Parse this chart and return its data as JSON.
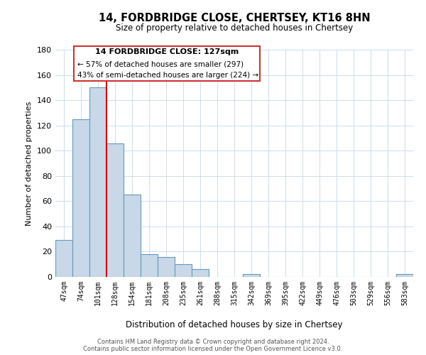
{
  "title": "14, FORDBRIDGE CLOSE, CHERTSEY, KT16 8HN",
  "subtitle": "Size of property relative to detached houses in Chertsey",
  "xlabel": "Distribution of detached houses by size in Chertsey",
  "ylabel": "Number of detached properties",
  "bar_labels": [
    "47sqm",
    "74sqm",
    "101sqm",
    "128sqm",
    "154sqm",
    "181sqm",
    "208sqm",
    "235sqm",
    "261sqm",
    "288sqm",
    "315sqm",
    "342sqm",
    "369sqm",
    "395sqm",
    "422sqm",
    "449sqm",
    "476sqm",
    "503sqm",
    "529sqm",
    "556sqm",
    "583sqm"
  ],
  "bar_values": [
    29,
    125,
    150,
    106,
    65,
    18,
    16,
    10,
    6,
    0,
    0,
    2,
    0,
    0,
    0,
    0,
    0,
    0,
    0,
    0,
    2
  ],
  "bar_color": "#c8d8e8",
  "bar_edge_color": "#6699bb",
  "vline_color": "#cc0000",
  "vline_x": 2.5,
  "ylim": [
    0,
    180
  ],
  "yticks": [
    0,
    20,
    40,
    60,
    80,
    100,
    120,
    140,
    160,
    180
  ],
  "annotation_title": "14 FORDBRIDGE CLOSE: 127sqm",
  "annotation_line1": "← 57% of detached houses are smaller (297)",
  "annotation_line2": "43% of semi-detached houses are larger (224) →",
  "annotation_box_color": "#ffffff",
  "annotation_box_edge": "#cc3333",
  "footer_line1": "Contains HM Land Registry data © Crown copyright and database right 2024.",
  "footer_line2": "Contains public sector information licensed under the Open Government Licence v3.0.",
  "background_color": "#ffffff",
  "grid_color": "#ccddee"
}
